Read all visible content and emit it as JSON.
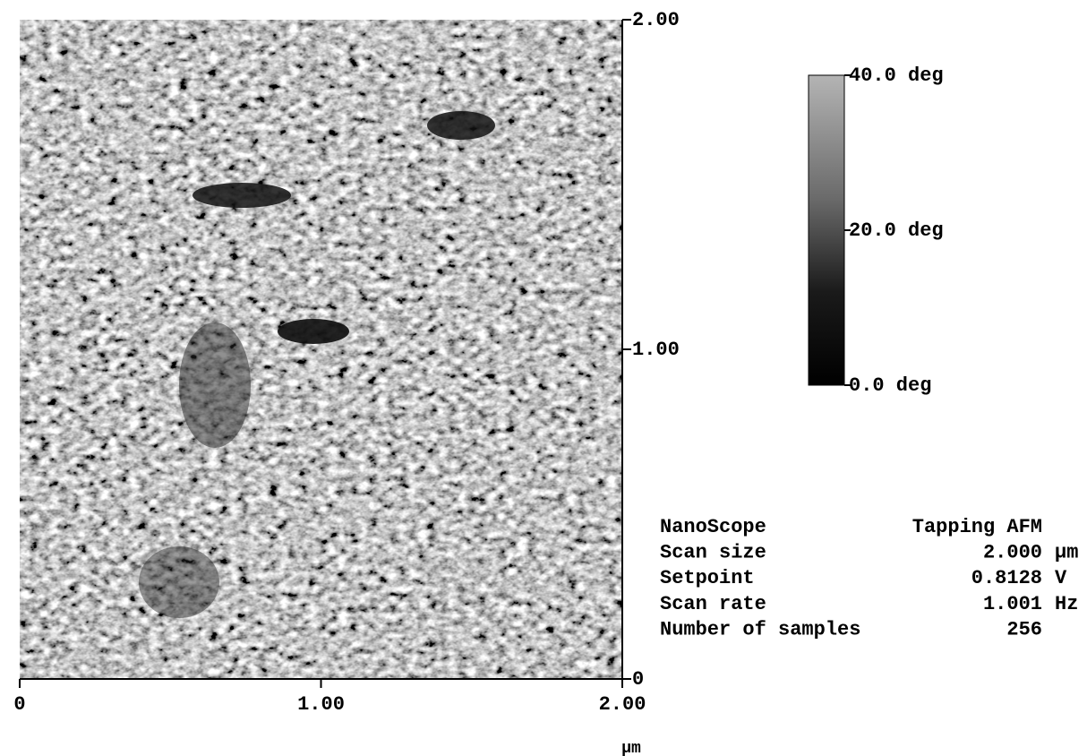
{
  "image": {
    "xlim": [
      0,
      2
    ],
    "ylim": [
      0,
      2
    ],
    "xticks": [
      0,
      {
        "value": 1,
        "label": "1.00"
      },
      {
        "value": 2,
        "label": "2.00"
      }
    ],
    "yticks": [
      0,
      {
        "value": 1,
        "label": "1.00"
      },
      {
        "value": 2,
        "label": "2.00"
      }
    ],
    "x_unit": "µm"
  },
  "colorbar": {
    "lim": [
      0,
      40
    ],
    "ticks": [
      {
        "value": 0,
        "label": "0.0 deg"
      },
      {
        "value": 20,
        "label": "20.0 deg"
      },
      {
        "value": 40,
        "label": "40.0 deg"
      }
    ]
  },
  "info": {
    "rows": [
      {
        "label": "NanoScope",
        "value": "Tapping AFM"
      },
      {
        "label": "Scan size",
        "value": "2.000",
        "unit": "µm"
      },
      {
        "label": "Setpoint",
        "value": "0.8128",
        "unit": "V"
      },
      {
        "label": "Scan rate",
        "value": "1.001",
        "unit": "Hz"
      },
      {
        "label": "Number of samples",
        "value": "256"
      }
    ]
  }
}
